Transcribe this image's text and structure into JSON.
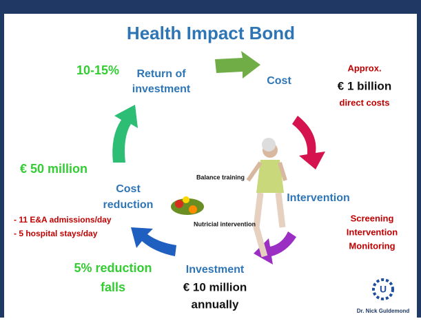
{
  "title": "Health Impact Bond",
  "nodes": [
    {
      "label": [
        "Return of",
        "investment"
      ],
      "note": [
        "10-15%"
      ]
    },
    {
      "label": [
        "Cost"
      ],
      "note": [
        "Approx.",
        "€ 1 billion",
        "direct costs"
      ]
    },
    {
      "label": [
        "Intervention"
      ],
      "note": [
        "Screening",
        "Intervention",
        "Monitoring"
      ],
      "items": [
        "Balance training",
        "Nutricial intervention"
      ]
    },
    {
      "label": [
        "Investment"
      ],
      "note": [
        "€ 10 million",
        "annually"
      ]
    },
    {
      "label": [
        "Cost",
        "reduction"
      ],
      "note": [
        "- 11 E&A admissions/day",
        "- 5 hospital stays/day"
      ]
    }
  ],
  "callouts": [
    "€ 50 million",
    "5% reduction",
    "falls"
  ],
  "author": "Dr. Nick Guldemond"
}
